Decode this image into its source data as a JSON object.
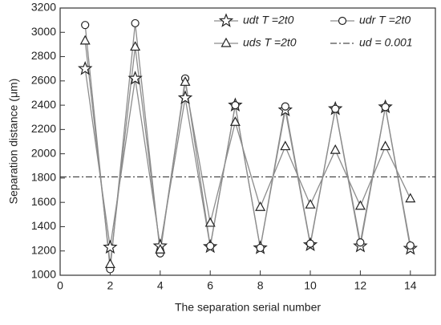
{
  "chart_data": {
    "type": "line",
    "x_label": "The separation serial number",
    "y_label": "Separation distance (μm)",
    "x": [
      1,
      2,
      3,
      4,
      5,
      6,
      7,
      8,
      9,
      10,
      11,
      12,
      13,
      14
    ],
    "series": [
      {
        "name": "udt T =2t0",
        "color": "#8c8c8c",
        "marker": "star",
        "values": [
          2700,
          1230,
          2620,
          1240,
          2460,
          1235,
          2400,
          1225,
          2360,
          1250,
          2370,
          1240,
          2385,
          1220
        ]
      },
      {
        "name": "udr T =2t0",
        "color": "#8c8c8c",
        "marker": "circle",
        "values": [
          3060,
          1050,
          3075,
          1180,
          2620,
          1240,
          2400,
          1225,
          2390,
          1260,
          2370,
          1270,
          2385,
          1245
        ]
      },
      {
        "name": "uds T =2t0",
        "color": "#8c8c8c",
        "marker": "triangle",
        "values": [
          2930,
          1090,
          2880,
          1210,
          2590,
          1430,
          2260,
          1560,
          2060,
          1580,
          2030,
          1570,
          2060,
          1630
        ]
      }
    ],
    "threshold": {
      "name": "ud = 0.001",
      "value": 1810
    },
    "xlim": [
      0,
      15
    ],
    "xticks": [
      0,
      2,
      4,
      6,
      8,
      10,
      12,
      14
    ],
    "ylim": [
      1000,
      3200
    ],
    "yticks": [
      1000,
      1200,
      1400,
      1600,
      1800,
      2000,
      2200,
      2400,
      2600,
      2800,
      3000,
      3200
    ],
    "legend": "upper-right"
  }
}
